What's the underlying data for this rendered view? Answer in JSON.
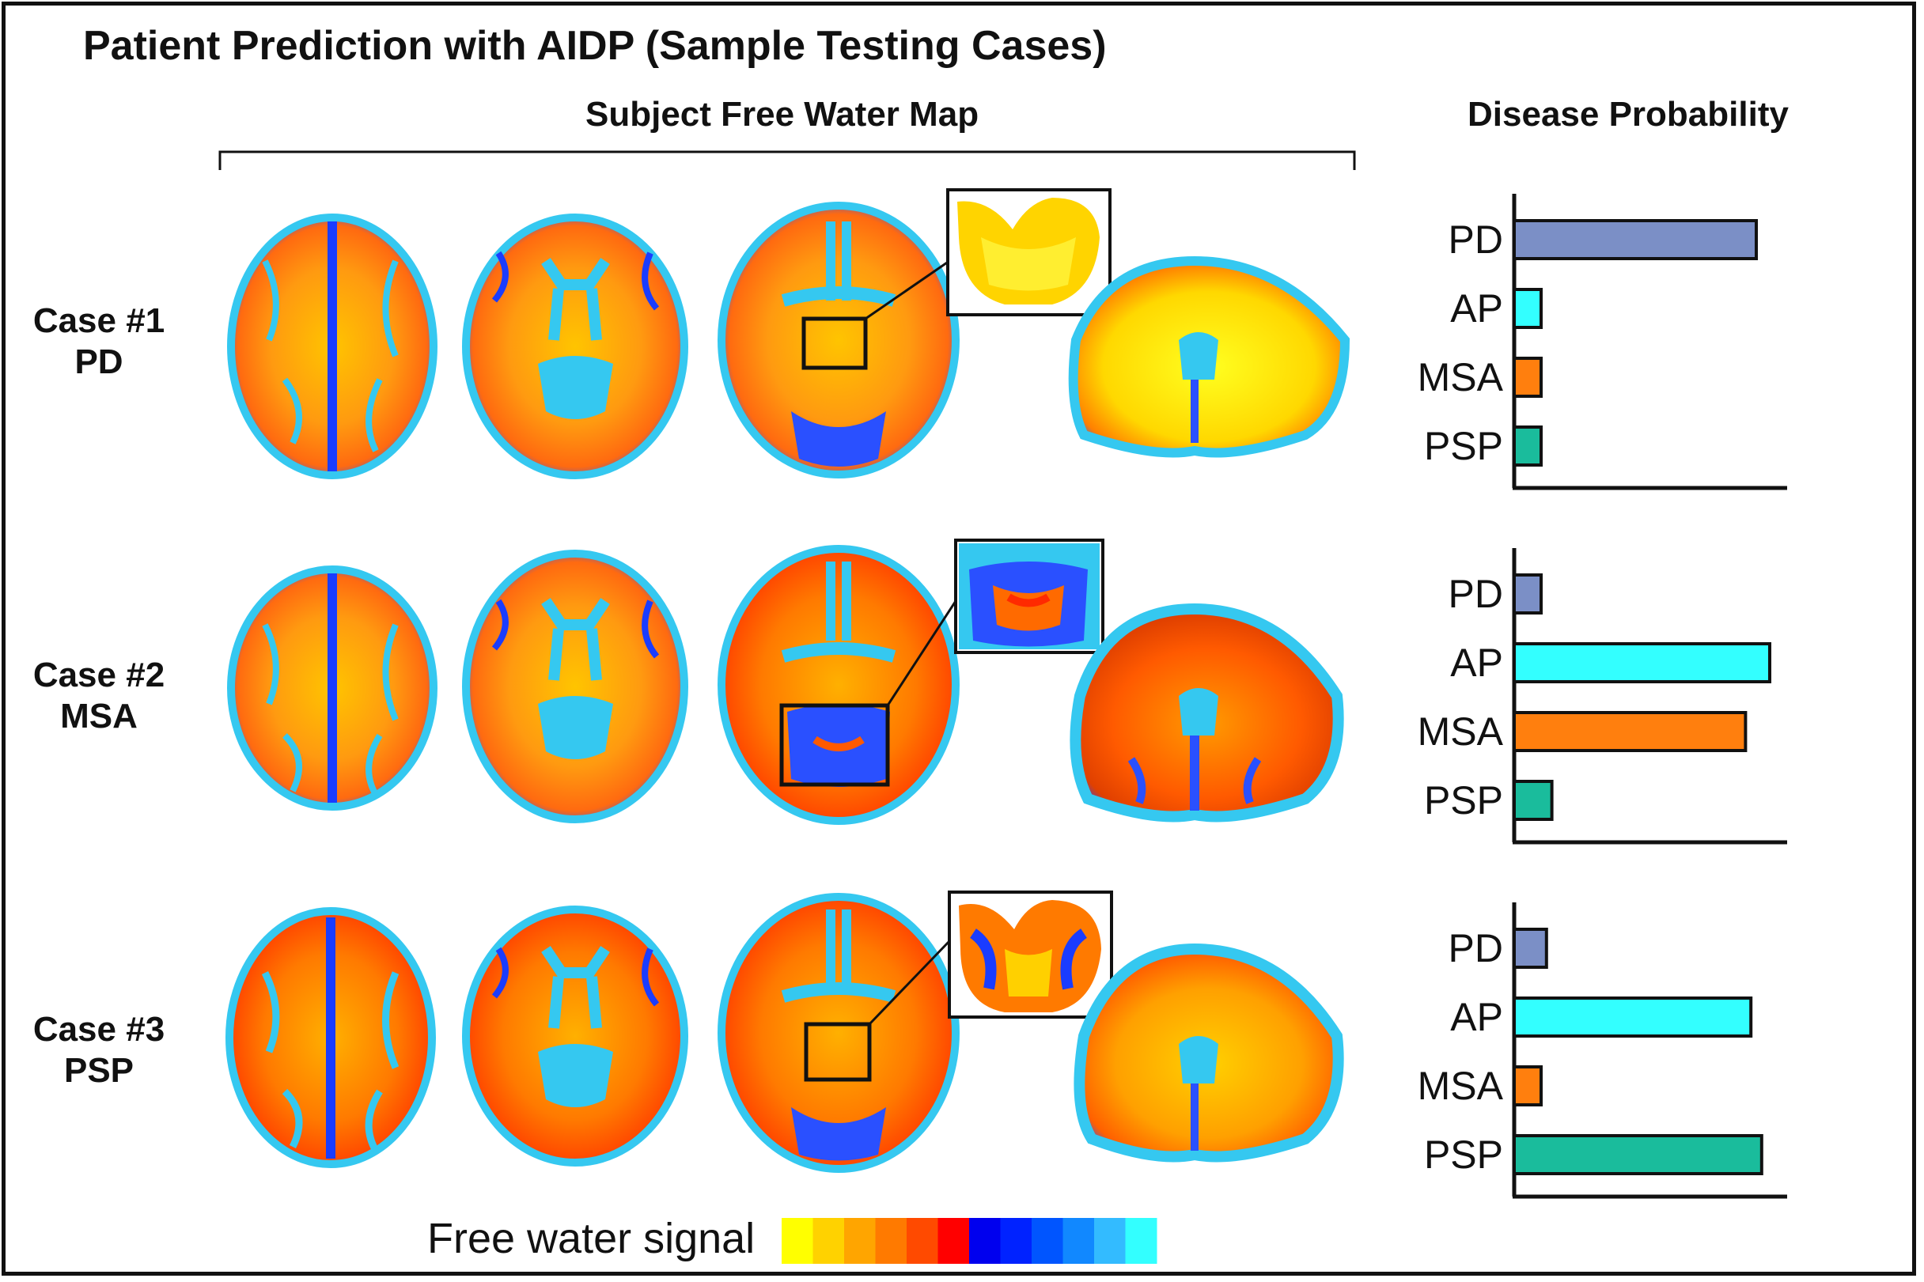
{
  "title": "Patient Prediction with AIDP (Sample Testing Cases)",
  "headers": {
    "map": "Subject Free Water Map",
    "probability": "Disease Probability"
  },
  "cases": [
    {
      "line1": "Case #1",
      "line2": "PD"
    },
    {
      "line1": "Case #2",
      "line2": "MSA"
    },
    {
      "line1": "Case #3",
      "line2": "PSP"
    }
  ],
  "legend": {
    "label": "Free water signal",
    "colors": [
      "#ffff00",
      "#ffd200",
      "#ffa500",
      "#ff7a00",
      "#ff4a00",
      "#ff0000",
      "#0000ee",
      "#0022ff",
      "#0055ff",
      "#1188ff",
      "#33bbff",
      "#33ffff"
    ]
  },
  "chart_data": [
    {
      "type": "bar",
      "title": "Case #1 PD",
      "orientation": "horizontal",
      "categories": [
        "PD",
        "AP",
        "MSA",
        "PSP"
      ],
      "values": [
        0.9,
        0.1,
        0.1,
        0.1
      ],
      "xlim": [
        0,
        1
      ]
    },
    {
      "type": "bar",
      "title": "Case #2 MSA",
      "orientation": "horizontal",
      "categories": [
        "PD",
        "AP",
        "MSA",
        "PSP"
      ],
      "values": [
        0.1,
        0.95,
        0.86,
        0.14
      ],
      "xlim": [
        0,
        1
      ]
    },
    {
      "type": "bar",
      "title": "Case #3 PSP",
      "orientation": "horizontal",
      "categories": [
        "PD",
        "AP",
        "MSA",
        "PSP"
      ],
      "values": [
        0.12,
        0.88,
        0.1,
        0.92
      ],
      "xlim": [
        0,
        1
      ]
    }
  ],
  "bar_colors": {
    "PD": "#7b8fc6",
    "AP": "#33ffff",
    "MSA": "#ff7f0e",
    "PSP": "#1abc9c"
  }
}
